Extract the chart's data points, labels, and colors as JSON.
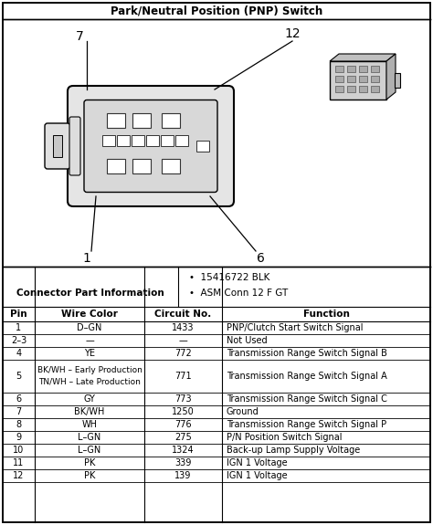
{
  "title": "Park/Neutral Position (PNP) Switch",
  "part_info_label": "Connector Part Information",
  "bullet_items": [
    "15416722 BLK",
    "ASM Conn 12 F GT"
  ],
  "table_headers": [
    "Pin",
    "Wire Color",
    "Circuit No.",
    "Function"
  ],
  "table_rows": [
    [
      "1",
      "D–GN",
      "1433",
      "PNP/Clutch Start Switch Signal"
    ],
    [
      "2–3",
      "—",
      "—",
      "Not Used"
    ],
    [
      "4",
      "YE",
      "772",
      "Transmission Range Switch Signal B"
    ],
    [
      "5",
      "BK/WH – Early Production\n\nTN/WH – Late Production",
      "771",
      "Transmission Range Switch Signal A"
    ],
    [
      "6",
      "GY",
      "773",
      "Transmission Range Switch Signal C"
    ],
    [
      "7",
      "BK/WH",
      "1250",
      "Ground"
    ],
    [
      "8",
      "WH",
      "776",
      "Transmission Range Switch Signal P"
    ],
    [
      "9",
      "L–GN",
      "275",
      "P/N Position Switch Signal"
    ],
    [
      "10",
      "L–GN",
      "1324",
      "Back-up Lamp Supply Voltage"
    ],
    [
      "11",
      "PK",
      "339",
      "IGN 1 Voltage"
    ],
    [
      "12",
      "PK",
      "139",
      "IGN 1 Voltage"
    ]
  ],
  "bg_color": "#ffffff"
}
